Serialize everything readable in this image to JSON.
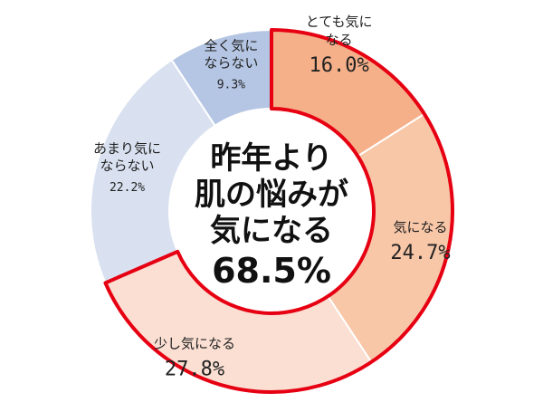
{
  "chart_data": {
    "type": "pie",
    "variant": "donut",
    "unit": "%",
    "slices": [
      {
        "label_lines": [
          "とても気に",
          "なる"
        ],
        "value": 16.0,
        "value_text": "16.0%",
        "color": "#f5b08a",
        "highlighted": true
      },
      {
        "label_lines": [
          "気になる"
        ],
        "value": 24.7,
        "value_text": "24.7%",
        "color": "#f8c7a8",
        "highlighted": true
      },
      {
        "label_lines": [
          "少し気になる"
        ],
        "value": 27.8,
        "value_text": "27.8%",
        "color": "#fadfd2",
        "highlighted": true
      },
      {
        "label_lines": [
          "あまり気に",
          "ならない"
        ],
        "value": 22.2,
        "value_text": "22.2%",
        "color": "#d9e1f0",
        "highlighted": false
      },
      {
        "label_lines": [
          "全く気に",
          "ならない"
        ],
        "value": 9.3,
        "value_text": "9.3%",
        "color": "#b5c6e4",
        "highlighted": false
      }
    ],
    "center_text": [
      "昨年より",
      "肌の悩みが",
      "気になる",
      "68.5%"
    ],
    "highlight_color": "#e60012",
    "start_angle": "12 o'clock",
    "direction": "clockwise"
  }
}
